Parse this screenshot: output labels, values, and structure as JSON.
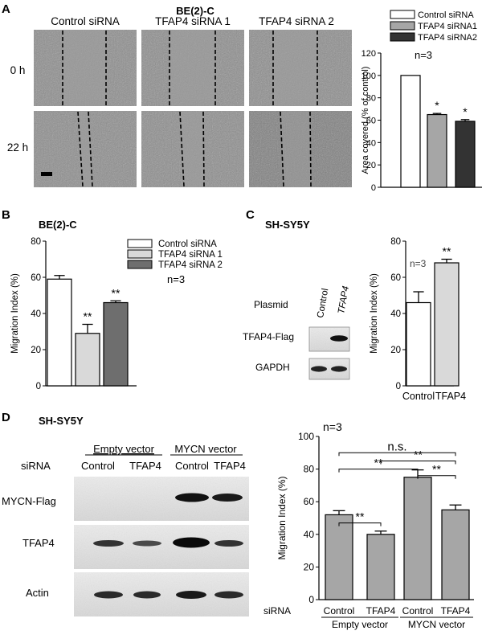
{
  "panelA": {
    "letter": "A",
    "title": "BE(2)-C",
    "col_headers": [
      "Control siRNA",
      "TFAP4 siRNA 1",
      "TFAP4 siRNA 2"
    ],
    "row_labels": [
      "0 h",
      "22 h"
    ]
  },
  "panelB": {
    "letter": "B",
    "title": "BE(2)-C"
  },
  "panelC": {
    "letter": "C",
    "title": "SH-SY5Y",
    "blot_row_labels": [
      "Plasmid",
      "TFAP4-Flag",
      "GAPDH"
    ],
    "blot_col_labels": [
      "Control",
      "TFAP4"
    ]
  },
  "panelD": {
    "letter": "D",
    "title": "SH-SY5Y",
    "vector_labels": [
      "Empty vector",
      "MYCN vector"
    ],
    "sirna_label": "siRNA",
    "lane_labels": [
      "Control",
      "TFAP4",
      "Control",
      "TFAP4"
    ],
    "blot_row_labels": [
      "MYCN-Flag",
      "TFAP4",
      "Actin"
    ]
  },
  "colors": {
    "white": "#ffffff",
    "lightgray": "#d9d9d9",
    "midgray": "#a6a6a6",
    "darkgray": "#6e6e6e",
    "black": "#333333",
    "barD": "#a6a6a6"
  },
  "chart_data": [
    {
      "id": "A",
      "type": "bar",
      "categories": [
        "Control siRNA",
        "TFAP4 siRNA1",
        "TFAP4 siRNA2"
      ],
      "values": [
        100,
        65,
        59
      ],
      "errors": [
        0,
        1,
        1.5
      ],
      "fills": [
        "#ffffff",
        "#a6a6a6",
        "#333333"
      ],
      "annotations": [
        "",
        "*",
        "*"
      ],
      "ylabel": "Area covered (% of control)",
      "ylim": [
        0,
        120
      ],
      "yticks": [
        "0",
        "20",
        "40",
        "60",
        "80",
        "100",
        "120"
      ],
      "legend": [
        "Control siRNA",
        "TFAP4 siRNA1",
        "TFAP4 siRNA2"
      ],
      "note": "n=3"
    },
    {
      "id": "B",
      "type": "bar",
      "categories": [
        "Control siRNA",
        "TFAP4 siRNA 1",
        "TFAP4 siRNA 2"
      ],
      "values": [
        59,
        29,
        46
      ],
      "errors": [
        2,
        5,
        1
      ],
      "fills": [
        "#ffffff",
        "#d9d9d9",
        "#6e6e6e"
      ],
      "annotations": [
        "",
        "**",
        "**"
      ],
      "ylabel": "Migration Index (%)",
      "ylim": [
        0,
        80
      ],
      "yticks": [
        "0",
        "20",
        "40",
        "60",
        "80"
      ],
      "legend": [
        "Control siRNA",
        "TFAP4 siRNA 1",
        "TFAP4 siRNA 2"
      ],
      "note": "n=3"
    },
    {
      "id": "C",
      "type": "bar",
      "categories": [
        "Control",
        "TFAP4"
      ],
      "values": [
        46,
        68
      ],
      "errors": [
        6,
        2
      ],
      "fills": [
        "#ffffff",
        "#d9d9d9"
      ],
      "annotations": [
        "",
        "**"
      ],
      "ylabel": "Migration Index (%)",
      "ylim": [
        0,
        80
      ],
      "yticks": [
        "0",
        "20",
        "40",
        "60",
        "80"
      ],
      "note": "n=3"
    },
    {
      "id": "D",
      "type": "bar",
      "categories": [
        "Control",
        "TFAP4",
        "Control",
        "TFAP4"
      ],
      "groups": [
        "Empty vector",
        "MYCN vector"
      ],
      "values": [
        52,
        40,
        75,
        55
      ],
      "errors": [
        2.5,
        2,
        4.5,
        3
      ],
      "ylabel": "Migration Index (%)",
      "ylim": [
        0,
        100
      ],
      "yticks": [
        "0",
        "20",
        "40",
        "60",
        "80",
        "100"
      ],
      "xprefix": "siRNA",
      "note": "n=3",
      "comparisons": [
        {
          "a": 0,
          "b": 1,
          "label": "**"
        },
        {
          "a": 0,
          "b": 3,
          "label": "n.s."
        },
        {
          "a": 1,
          "b": 3,
          "label": "**"
        },
        {
          "a": 0,
          "b": 2,
          "label": "**"
        },
        {
          "a": 2,
          "b": 3,
          "label": "**"
        }
      ]
    }
  ]
}
